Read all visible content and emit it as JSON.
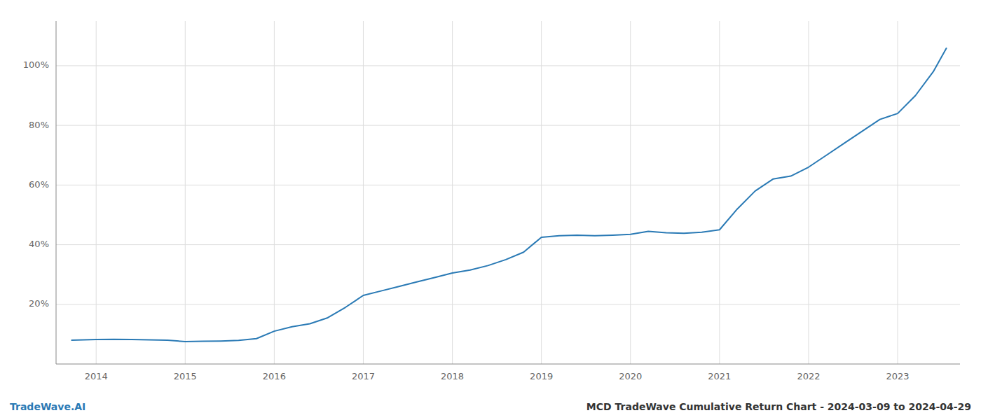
{
  "chart_data": {
    "type": "line",
    "color": "#2a7ab5",
    "grid": true,
    "x": [
      2013.72,
      2014.0,
      2014.2,
      2014.4,
      2014.6,
      2014.8,
      2015.0,
      2015.2,
      2015.4,
      2015.6,
      2015.8,
      2016.0,
      2016.2,
      2016.4,
      2016.6,
      2016.8,
      2017.0,
      2017.2,
      2017.4,
      2017.6,
      2017.8,
      2018.0,
      2018.2,
      2018.4,
      2018.6,
      2018.8,
      2019.0,
      2019.2,
      2019.4,
      2019.6,
      2019.8,
      2020.0,
      2020.2,
      2020.4,
      2020.6,
      2020.8,
      2021.0,
      2021.2,
      2021.4,
      2021.6,
      2021.8,
      2022.0,
      2022.2,
      2022.4,
      2022.6,
      2022.8,
      2023.0,
      2023.2,
      2023.4,
      2023.55
    ],
    "values": [
      8.0,
      8.2,
      8.3,
      8.2,
      8.1,
      8.0,
      7.5,
      7.6,
      7.7,
      7.9,
      8.5,
      11.0,
      12.5,
      13.5,
      15.5,
      19.0,
      23.0,
      24.5,
      26.0,
      27.5,
      29.0,
      30.5,
      31.5,
      33.0,
      35.0,
      37.5,
      42.5,
      43.0,
      43.2,
      43.0,
      43.2,
      43.5,
      44.5,
      44.0,
      43.8,
      44.2,
      45.0,
      52.0,
      58.0,
      62.0,
      63.0,
      66.0,
      70.0,
      74.0,
      78.0,
      82.0,
      84.0,
      90.0,
      98.0,
      106.0
    ],
    "xlim": [
      2013.55,
      2023.7
    ],
    "xticks": [
      2014,
      2015,
      2016,
      2017,
      2018,
      2019,
      2020,
      2021,
      2022,
      2023
    ],
    "ylim": [
      0,
      115
    ],
    "yticks": [
      {
        "value": 20,
        "label": "20%"
      },
      {
        "value": 40,
        "label": "40%"
      },
      {
        "value": 60,
        "label": "60%"
      },
      {
        "value": 80,
        "label": "80%"
      },
      {
        "value": 100,
        "label": "100%"
      }
    ],
    "annotations": [
      {
        "text": "TradeWave.AI",
        "color": "#2a7ab5"
      },
      {
        "text": "MCD TradeWave Cumulative Return Chart - 2024-03-09 to 2024-04-29",
        "color": "#333333"
      }
    ]
  }
}
